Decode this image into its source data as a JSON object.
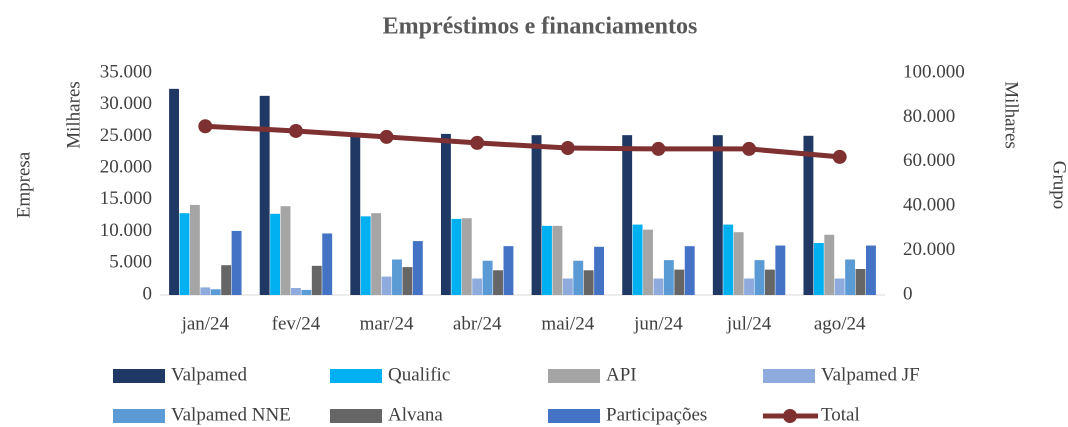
{
  "chart_data": {
    "type": "bar",
    "title": "Empréstimos e financiamentos",
    "y_label": "Empresa",
    "y_unit": "Milhares",
    "y2_label": "Grupo",
    "y2_unit": "Milhares",
    "categories": [
      "jan/24",
      "fev/24",
      "mar/24",
      "abr/24",
      "mai/24",
      "jun/24",
      "jul/24",
      "ago/24"
    ],
    "series": [
      {
        "name": "Valpamed",
        "color": "#1f3864",
        "values": [
          32500,
          31400,
          25300,
          25400,
          25200,
          25200,
          25200,
          25100
        ]
      },
      {
        "name": "Qualific",
        "color": "#00b0f0",
        "values": [
          12900,
          12800,
          12400,
          12000,
          10900,
          11100,
          11100,
          8200
        ]
      },
      {
        "name": "API",
        "color": "#a5a5a5",
        "values": [
          14200,
          14000,
          12900,
          12100,
          10900,
          10300,
          9900,
          9500
        ]
      },
      {
        "name": "Valpamed JF",
        "color": "#8faadc",
        "values": [
          1200,
          1100,
          2900,
          2600,
          2600,
          2600,
          2600,
          2600
        ]
      },
      {
        "name": "Valpamed NNE",
        "color": "#5b9bd5",
        "values": [
          900,
          800,
          5600,
          5400,
          5400,
          5500,
          5500,
          5600
        ]
      },
      {
        "name": "Alvana",
        "color": "#666666",
        "values": [
          4700,
          4600,
          4400,
          3900,
          3900,
          4000,
          4000,
          4100
        ]
      },
      {
        "name": "Participações",
        "color": "#4472c4",
        "values": [
          10100,
          9700,
          8500,
          7700,
          7600,
          7700,
          7800,
          7800
        ]
      },
      {
        "name": "Total",
        "color": "#7f3030",
        "type": "line",
        "axis": "y2",
        "values": [
          76000,
          73900,
          71200,
          68500,
          66200,
          65800,
          65800,
          62200
        ]
      }
    ],
    "ylim": [
      0,
      35000
    ],
    "yticks": [
      0,
      {
        "value": 5000,
        "label": "5.000"
      },
      {
        "value": 10000,
        "label": "10.000"
      },
      {
        "value": 15000,
        "label": "15.000"
      },
      {
        "value": 20000,
        "label": "20.000"
      },
      {
        "value": 25000,
        "label": "25.000"
      },
      {
        "value": 30000,
        "label": "30.000"
      },
      {
        "value": 35000,
        "label": "35.000"
      }
    ],
    "y2lim": [
      0,
      100000
    ],
    "y2ticks": [
      0,
      {
        "value": 20000,
        "label": "20.000"
      },
      {
        "value": 40000,
        "label": "40.000"
      },
      {
        "value": 60000,
        "label": "60.000"
      },
      {
        "value": 80000,
        "label": "80.000"
      },
      {
        "value": 100000,
        "label": "100.000"
      }
    ],
    "grid": false,
    "legend": "bottom"
  }
}
